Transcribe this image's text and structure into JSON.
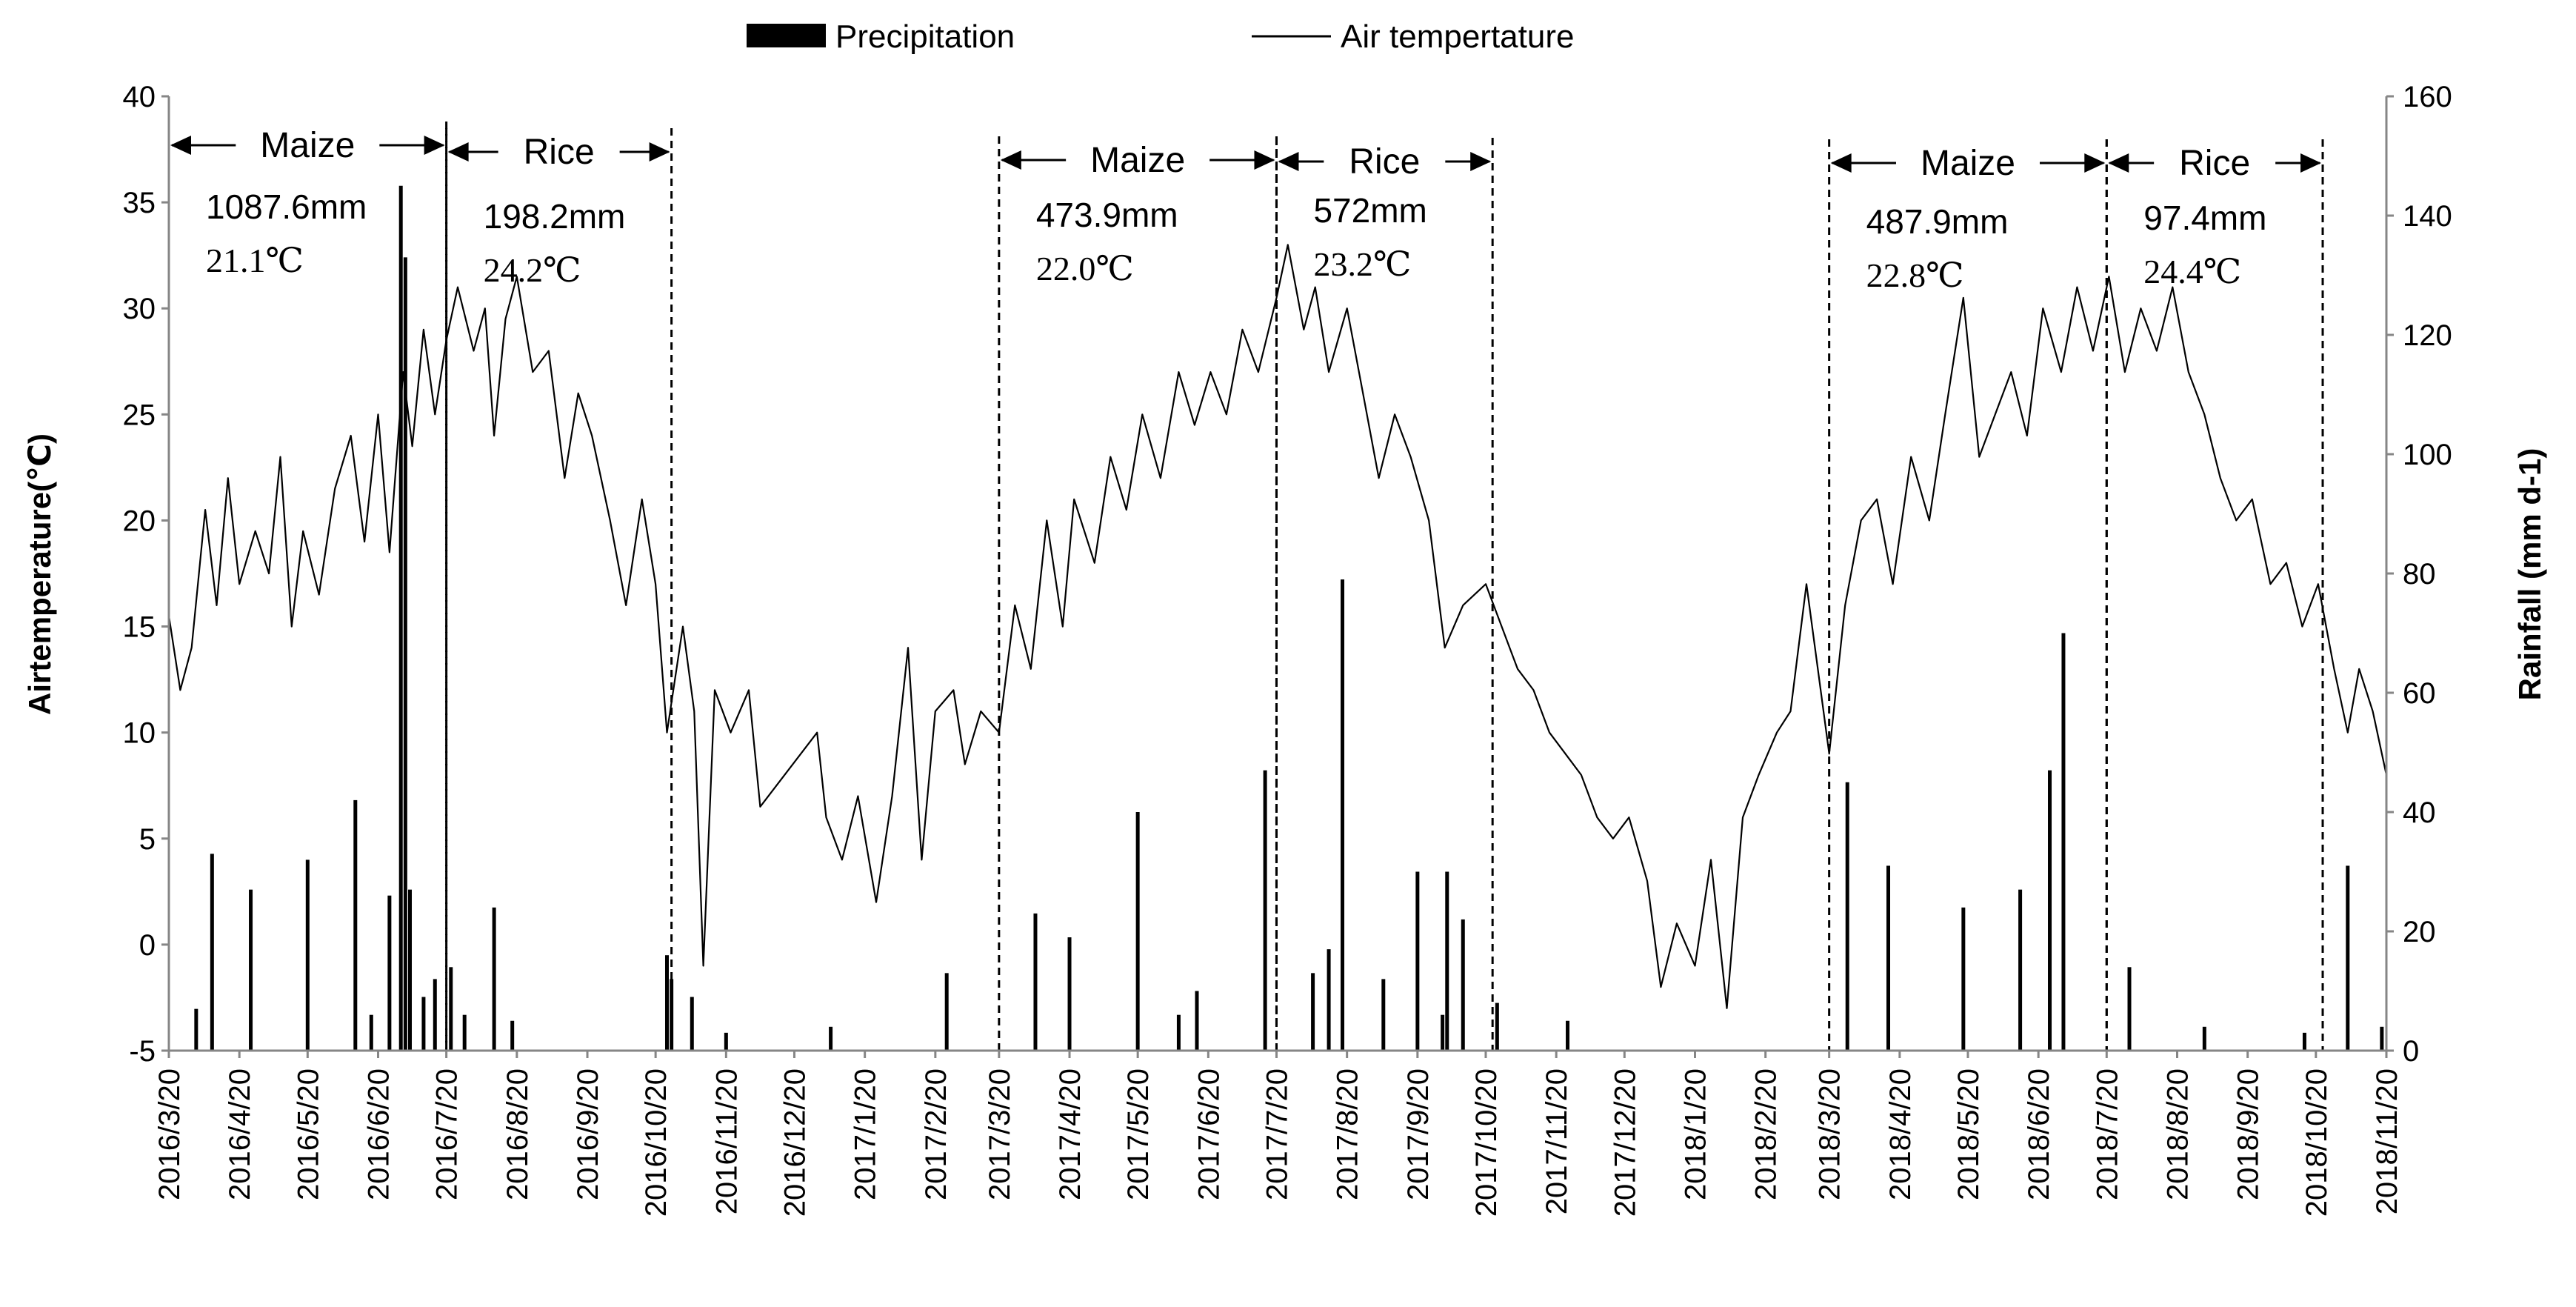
{
  "chart_data": {
    "type": "bar+line",
    "legend": {
      "position": "top-center",
      "entries": [
        {
          "name": "Precipitation",
          "marker": "bar"
        },
        {
          "name": "Air tempertature",
          "marker": "line"
        }
      ]
    },
    "axes": {
      "y_left": {
        "label": "Airtemperature(℃)",
        "min": -5,
        "max": 40,
        "ticks": [
          "40",
          "35",
          "30",
          "25",
          "20",
          "15",
          "10",
          "5",
          "0",
          "-5"
        ]
      },
      "y_right": {
        "label": "Rainfall (mm d-1)",
        "min": 0,
        "max": 160,
        "ticks": [
          "160",
          "140",
          "120",
          "100",
          "80",
          "60",
          "40",
          "20",
          "0"
        ]
      },
      "x": {
        "start": "2016/3/20",
        "end": "2018/11/20",
        "ticks": [
          "2016/3/20",
          "2016/4/20",
          "2016/5/20",
          "2016/6/20",
          "2016/7/20",
          "2016/8/20",
          "2016/9/20",
          "2016/10/20",
          "2016/11/20",
          "2016/12/20",
          "2017/1/20",
          "2017/2/20",
          "2017/3/20",
          "2017/4/20",
          "2017/5/20",
          "2017/6/20",
          "2017/7/20",
          "2017/8/20",
          "2017/9/20",
          "2017/10/20",
          "2017/11/20",
          "2017/12/20",
          "2018/1/20",
          "2018/2/20",
          "2018/3/20",
          "2018/4/20",
          "2018/5/20",
          "2018/6/20",
          "2018/7/20",
          "2018/8/20",
          "2018/9/20",
          "2018/10/20",
          "2018/11/20"
        ]
      }
    },
    "series": [
      {
        "name": "Air tempertature",
        "axis": "left",
        "type": "line",
        "points": [
          [
            "2016/3/20",
            15.5
          ],
          [
            "2016/3/25",
            12
          ],
          [
            "2016/3/30",
            14
          ],
          [
            "2016/4/5",
            20.5
          ],
          [
            "2016/4/10",
            16
          ],
          [
            "2016/4/15",
            22
          ],
          [
            "2016/4/20",
            17
          ],
          [
            "2016/4/27",
            19.5
          ],
          [
            "2016/5/3",
            17.5
          ],
          [
            "2016/5/8",
            23
          ],
          [
            "2016/5/13",
            15
          ],
          [
            "2016/5/18",
            19.5
          ],
          [
            "2016/5/25",
            16.5
          ],
          [
            "2016/6/1",
            21.5
          ],
          [
            "2016/6/8",
            24
          ],
          [
            "2016/6/14",
            19
          ],
          [
            "2016/6/20",
            25
          ],
          [
            "2016/6/25",
            18.5
          ],
          [
            "2016/7/1",
            27
          ],
          [
            "2016/7/5",
            23.5
          ],
          [
            "2016/7/10",
            29
          ],
          [
            "2016/7/15",
            25
          ],
          [
            "2016/7/20",
            28.5
          ],
          [
            "2016/7/25",
            31
          ],
          [
            "2016/8/1",
            28
          ],
          [
            "2016/8/6",
            30
          ],
          [
            "2016/8/10",
            24
          ],
          [
            "2016/8/15",
            29.5
          ],
          [
            "2016/8/20",
            31.5
          ],
          [
            "2016/8/27",
            27
          ],
          [
            "2016/9/3",
            28
          ],
          [
            "2016/9/10",
            22
          ],
          [
            "2016/9/16",
            26
          ],
          [
            "2016/9/22",
            24
          ],
          [
            "2016/9/30",
            20
          ],
          [
            "2016/10/7",
            16
          ],
          [
            "2016/10/14",
            21
          ],
          [
            "2016/10/20",
            17
          ],
          [
            "2016/10/25",
            10
          ],
          [
            "2016/11/1",
            15
          ],
          [
            "2016/11/6",
            11
          ],
          [
            "2016/11/10",
            -1
          ],
          [
            "2016/11/15",
            12
          ],
          [
            "2016/11/22",
            10
          ],
          [
            "2016/11/30",
            12
          ],
          [
            "2016/12/5",
            6.5
          ],
          [
            "2016/12/30",
            10
          ],
          [
            "2017/1/3",
            6
          ],
          [
            "2017/1/10",
            4
          ],
          [
            "2017/1/17",
            7
          ],
          [
            "2017/1/25",
            2
          ],
          [
            "2017/2/1",
            7
          ],
          [
            "2017/2/8",
            14
          ],
          [
            "2017/2/14",
            4
          ],
          [
            "2017/2/20",
            11
          ],
          [
            "2017/2/28",
            12
          ],
          [
            "2017/3/5",
            8.5
          ],
          [
            "2017/3/12",
            11
          ],
          [
            "2017/3/20",
            10
          ],
          [
            "2017/3/27",
            16
          ],
          [
            "2017/4/3",
            13
          ],
          [
            "2017/4/10",
            20
          ],
          [
            "2017/4/17",
            15
          ],
          [
            "2017/4/22",
            21
          ],
          [
            "2017/5/1",
            18
          ],
          [
            "2017/5/8",
            23
          ],
          [
            "2017/5/15",
            20.5
          ],
          [
            "2017/5/22",
            25
          ],
          [
            "2017/5/30",
            22
          ],
          [
            "2017/6/7",
            27
          ],
          [
            "2017/6/14",
            24.5
          ],
          [
            "2017/6/21",
            27
          ],
          [
            "2017/6/28",
            25
          ],
          [
            "2017/7/5",
            29
          ],
          [
            "2017/7/12",
            27
          ],
          [
            "2017/7/20",
            30.5
          ],
          [
            "2017/7/25",
            33
          ],
          [
            "2017/8/1",
            29
          ],
          [
            "2017/8/6",
            31
          ],
          [
            "2017/8/12",
            27
          ],
          [
            "2017/8/20",
            30
          ],
          [
            "2017/8/27",
            26
          ],
          [
            "2017/9/3",
            22
          ],
          [
            "2017/9/10",
            25
          ],
          [
            "2017/9/17",
            23
          ],
          [
            "2017/9/25",
            20
          ],
          [
            "2017/10/2",
            14
          ],
          [
            "2017/10/10",
            16
          ],
          [
            "2017/10/20",
            17
          ],
          [
            "2017/10/27",
            15
          ],
          [
            "2017/11/3",
            13
          ],
          [
            "2017/11/10",
            12
          ],
          [
            "2017/11/17",
            10
          ],
          [
            "2017/11/24",
            9
          ],
          [
            "2017/12/1",
            8
          ],
          [
            "2017/12/8",
            6
          ],
          [
            "2017/12/15",
            5
          ],
          [
            "2017/12/22",
            6
          ],
          [
            "2017/12/30",
            3
          ],
          [
            "2018/1/5",
            -2
          ],
          [
            "2018/1/12",
            1
          ],
          [
            "2018/1/20",
            -1
          ],
          [
            "2018/1/27",
            4
          ],
          [
            "2018/2/3",
            -3
          ],
          [
            "2018/2/10",
            6
          ],
          [
            "2018/2/17",
            8
          ],
          [
            "2018/2/25",
            10
          ],
          [
            "2018/3/3",
            11
          ],
          [
            "2018/3/10",
            17
          ],
          [
            "2018/3/20",
            9
          ],
          [
            "2018/3/27",
            16
          ],
          [
            "2018/4/3",
            20
          ],
          [
            "2018/4/10",
            21
          ],
          [
            "2018/4/17",
            17
          ],
          [
            "2018/4/25",
            23
          ],
          [
            "2018/5/3",
            20
          ],
          [
            "2018/5/10",
            25
          ],
          [
            "2018/5/18",
            30.5
          ],
          [
            "2018/5/25",
            23
          ],
          [
            "2018/6/1",
            25
          ],
          [
            "2018/6/8",
            27
          ],
          [
            "2018/6/15",
            24
          ],
          [
            "2018/6/22",
            30
          ],
          [
            "2018/6/30",
            27
          ],
          [
            "2018/7/7",
            31
          ],
          [
            "2018/7/14",
            28
          ],
          [
            "2018/7/21",
            31.5
          ],
          [
            "2018/7/28",
            27
          ],
          [
            "2018/8/4",
            30
          ],
          [
            "2018/8/11",
            28
          ],
          [
            "2018/8/18",
            31
          ],
          [
            "2018/8/25",
            27
          ],
          [
            "2018/9/1",
            25
          ],
          [
            "2018/9/8",
            22
          ],
          [
            "2018/9/15",
            20
          ],
          [
            "2018/9/22",
            21
          ],
          [
            "2018/9/30",
            17
          ],
          [
            "2018/10/7",
            18
          ],
          [
            "2018/10/14",
            15
          ],
          [
            "2018/10/21",
            17
          ],
          [
            "2018/10/28",
            13
          ],
          [
            "2018/11/3",
            10
          ],
          [
            "2018/11/8",
            13
          ],
          [
            "2018/11/14",
            11
          ],
          [
            "2018/11/20",
            8
          ]
        ]
      },
      {
        "name": "Precipitation",
        "axis": "right",
        "type": "bar",
        "points": [
          [
            "2016/4/1",
            7
          ],
          [
            "2016/4/8",
            33
          ],
          [
            "2016/4/25",
            27
          ],
          [
            "2016/5/20",
            32
          ],
          [
            "2016/6/10",
            42
          ],
          [
            "2016/6/17",
            6
          ],
          [
            "2016/6/25",
            26
          ],
          [
            "2016/6/30",
            145
          ],
          [
            "2016/7/2",
            133
          ],
          [
            "2016/7/4",
            27
          ],
          [
            "2016/7/10",
            9
          ],
          [
            "2016/7/15",
            12
          ],
          [
            "2016/7/22",
            14
          ],
          [
            "2016/7/28",
            6
          ],
          [
            "2016/8/10",
            24
          ],
          [
            "2016/8/18",
            5
          ],
          [
            "2016/10/25",
            16
          ],
          [
            "2016/10/27",
            12
          ],
          [
            "2016/11/5",
            9
          ],
          [
            "2016/11/20",
            3
          ],
          [
            "2017/1/5",
            4
          ],
          [
            "2017/2/25",
            13
          ],
          [
            "2017/4/5",
            23
          ],
          [
            "2017/4/20",
            19
          ],
          [
            "2017/5/20",
            40
          ],
          [
            "2017/6/7",
            6
          ],
          [
            "2017/6/15",
            10
          ],
          [
            "2017/7/15",
            47
          ],
          [
            "2017/8/5",
            13
          ],
          [
            "2017/8/12",
            17
          ],
          [
            "2017/8/18",
            79
          ],
          [
            "2017/9/5",
            12
          ],
          [
            "2017/9/20",
            30
          ],
          [
            "2017/10/1",
            6
          ],
          [
            "2017/10/3",
            30
          ],
          [
            "2017/10/10",
            22
          ],
          [
            "2017/10/25",
            8
          ],
          [
            "2017/11/25",
            5
          ],
          [
            "2018/3/28",
            45
          ],
          [
            "2018/4/15",
            31
          ],
          [
            "2018/5/18",
            24
          ],
          [
            "2018/6/12",
            27
          ],
          [
            "2018/6/25",
            47
          ],
          [
            "2018/7/1",
            70
          ],
          [
            "2018/7/30",
            14
          ],
          [
            "2018/9/1",
            4
          ],
          [
            "2018/10/15",
            3
          ],
          [
            "2018/11/3",
            31
          ],
          [
            "2018/11/18",
            4
          ]
        ]
      }
    ],
    "seasons": [
      {
        "crop": "Maize",
        "start": "2016/3/20",
        "end": "2016/7/20",
        "precip": "1087.6mm",
        "temp": "21.1℃"
      },
      {
        "crop": "Rice",
        "start": "2016/7/20",
        "end": "2016/10/27",
        "precip": "198.2mm",
        "temp": "24.2℃"
      },
      {
        "crop": "Maize",
        "start": "2017/3/20",
        "end": "2017/7/20",
        "precip": "473.9mm",
        "temp": "22.0℃"
      },
      {
        "crop": "Rice",
        "start": "2017/7/20",
        "end": "2017/10/23",
        "precip": "572mm",
        "temp": "23.2℃"
      },
      {
        "crop": "Maize",
        "start": "2018/3/20",
        "end": "2018/7/20",
        "precip": "487.9mm",
        "temp": "22.8℃"
      },
      {
        "crop": "Rice",
        "start": "2018/7/20",
        "end": "2018/10/23",
        "precip": "97.4mm",
        "temp": "24.4℃"
      }
    ]
  }
}
